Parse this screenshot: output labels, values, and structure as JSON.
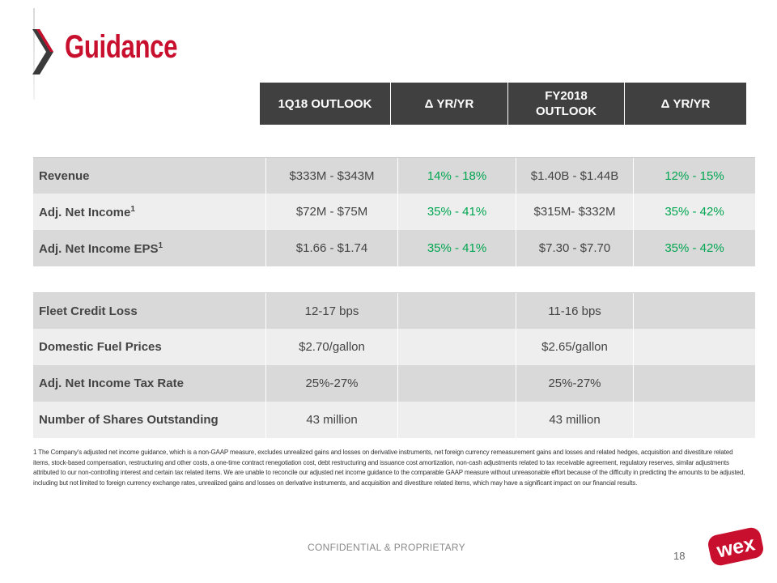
{
  "slide": {
    "title": "Guidance",
    "brand_color": "#c8102e",
    "positive_color": "#00a651"
  },
  "header": {
    "columns": [
      "1Q18 OUTLOOK",
      "Δ YR/YR",
      "FY2018\nOUTLOOK",
      "Δ YR/YR"
    ]
  },
  "table1": {
    "rows": [
      {
        "label": "Revenue",
        "sup": "",
        "q1": "$333M - $343M",
        "q1_yoy": "14% - 18%",
        "fy": "$1.40B - $1.44B",
        "fy_yoy": "12% - 15%"
      },
      {
        "label": "Adj. Net Income",
        "sup": "1",
        "q1": "$72M - $75M",
        "q1_yoy": "35% - 41%",
        "fy": "$315M- $332M",
        "fy_yoy": "35% - 42%"
      },
      {
        "label": "Adj. Net Income EPS",
        "sup": "1",
        "q1": "$1.66 - $1.74",
        "q1_yoy": "35% - 41%",
        "fy": "$7.30 - $7.70",
        "fy_yoy": "35% - 42%"
      }
    ]
  },
  "table2": {
    "rows": [
      {
        "label": "Fleet Credit Loss",
        "q1": "12-17 bps",
        "q1_yoy": "",
        "fy": "11-16 bps",
        "fy_yoy": ""
      },
      {
        "label": "Domestic Fuel Prices",
        "q1": "$2.70/gallon",
        "q1_yoy": "",
        "fy": "$2.65/gallon",
        "fy_yoy": ""
      },
      {
        "label": "Adj. Net Income Tax Rate",
        "q1": "25%-27%",
        "q1_yoy": "",
        "fy": "25%-27%",
        "fy_yoy": ""
      },
      {
        "label": "Number of Shares Outstanding",
        "q1": "43 million",
        "q1_yoy": "",
        "fy": "43 million",
        "fy_yoy": ""
      }
    ]
  },
  "footnote": "1 The Company's adjusted net income guidance, which is a non-GAAP measure, excludes unrealized gains and losses on derivative instruments, net foreign currency remeasurement gains and losses and related hedges, acquisition and divestiture related items, stock-based compensation, restructuring and other costs, a one-time contract renegotiation cost, debt restructuring and issuance cost amortization, non-cash adjustments related to tax receivable agreement, regulatory reserves, similar adjustments attributed to our non-controlling interest and certain tax related items. We are unable to reconcile our adjusted net income guidance to the comparable GAAP measure without unreasonable effort because of the difficulty in predicting the amounts to be adjusted, including but not limited to foreign currency exchange rates, unrealized gains and losses on derivative instruments, and acquisition and divestiture related items, which may have a significant impact on our financial results.",
  "footer": {
    "confidential": "CONFIDENTIAL & PROPRIETARY",
    "page_number": "18",
    "logo_text": "wex",
    "logo_icon": "wex-logo"
  }
}
